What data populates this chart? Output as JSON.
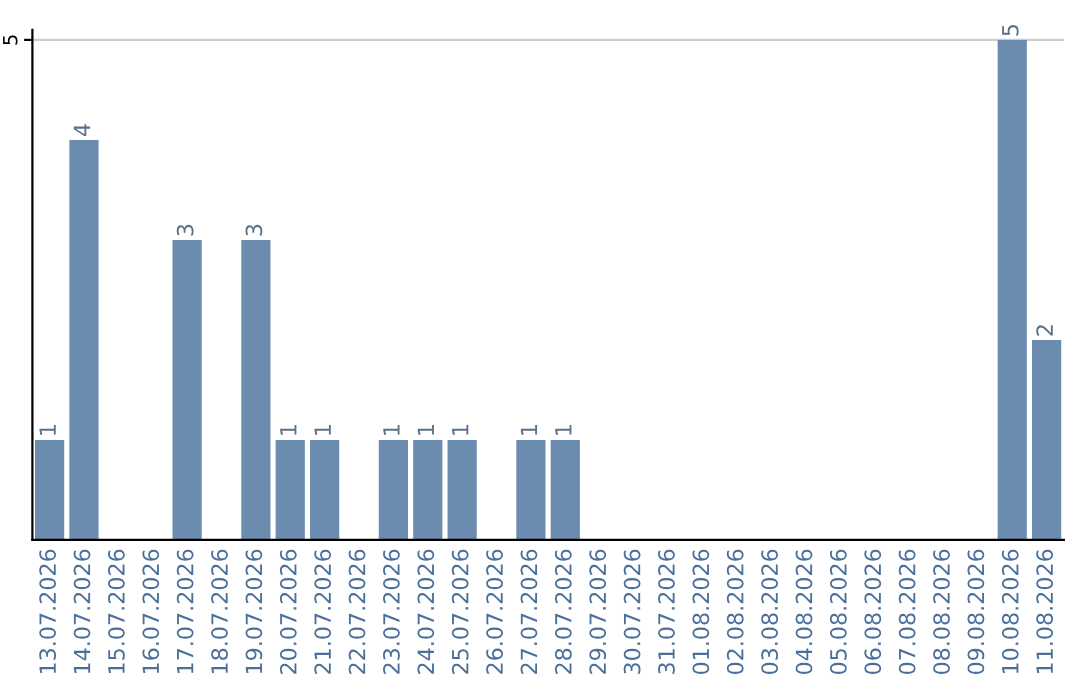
{
  "chart_data": {
    "type": "bar",
    "categories": [
      "13.07.2026",
      "14.07.2026",
      "15.07.2026",
      "16.07.2026",
      "17.07.2026",
      "18.07.2026",
      "19.07.2026",
      "20.07.2026",
      "21.07.2026",
      "22.07.2026",
      "23.07.2026",
      "24.07.2026",
      "25.07.2026",
      "26.07.2026",
      "27.07.2026",
      "28.07.2026",
      "29.07.2026",
      "30.07.2026",
      "31.07.2026",
      "01.08.2026",
      "02.08.2026",
      "03.08.2026",
      "04.08.2026",
      "05.08.2026",
      "06.08.2026",
      "07.08.2026",
      "08.08.2026",
      "09.08.2026",
      "10.08.2026",
      "11.08.2026"
    ],
    "values": [
      1,
      4,
      0,
      0,
      3,
      0,
      3,
      1,
      1,
      0,
      1,
      1,
      1,
      0,
      1,
      1,
      0,
      0,
      0,
      0,
      0,
      0,
      0,
      0,
      0,
      0,
      0,
      0,
      5,
      2
    ],
    "value_labels": [
      "1",
      "4",
      null,
      null,
      "3",
      null,
      "3",
      "1",
      "1",
      null,
      "1",
      "1",
      "1",
      null,
      "1",
      "1",
      null,
      null,
      null,
      null,
      null,
      null,
      null,
      null,
      null,
      null,
      null,
      null,
      "5",
      "2"
    ],
    "color": "#6b8cae",
    "ylim": [
      0,
      5.1
    ],
    "yticks": [
      5
    ],
    "grid": "y"
  }
}
